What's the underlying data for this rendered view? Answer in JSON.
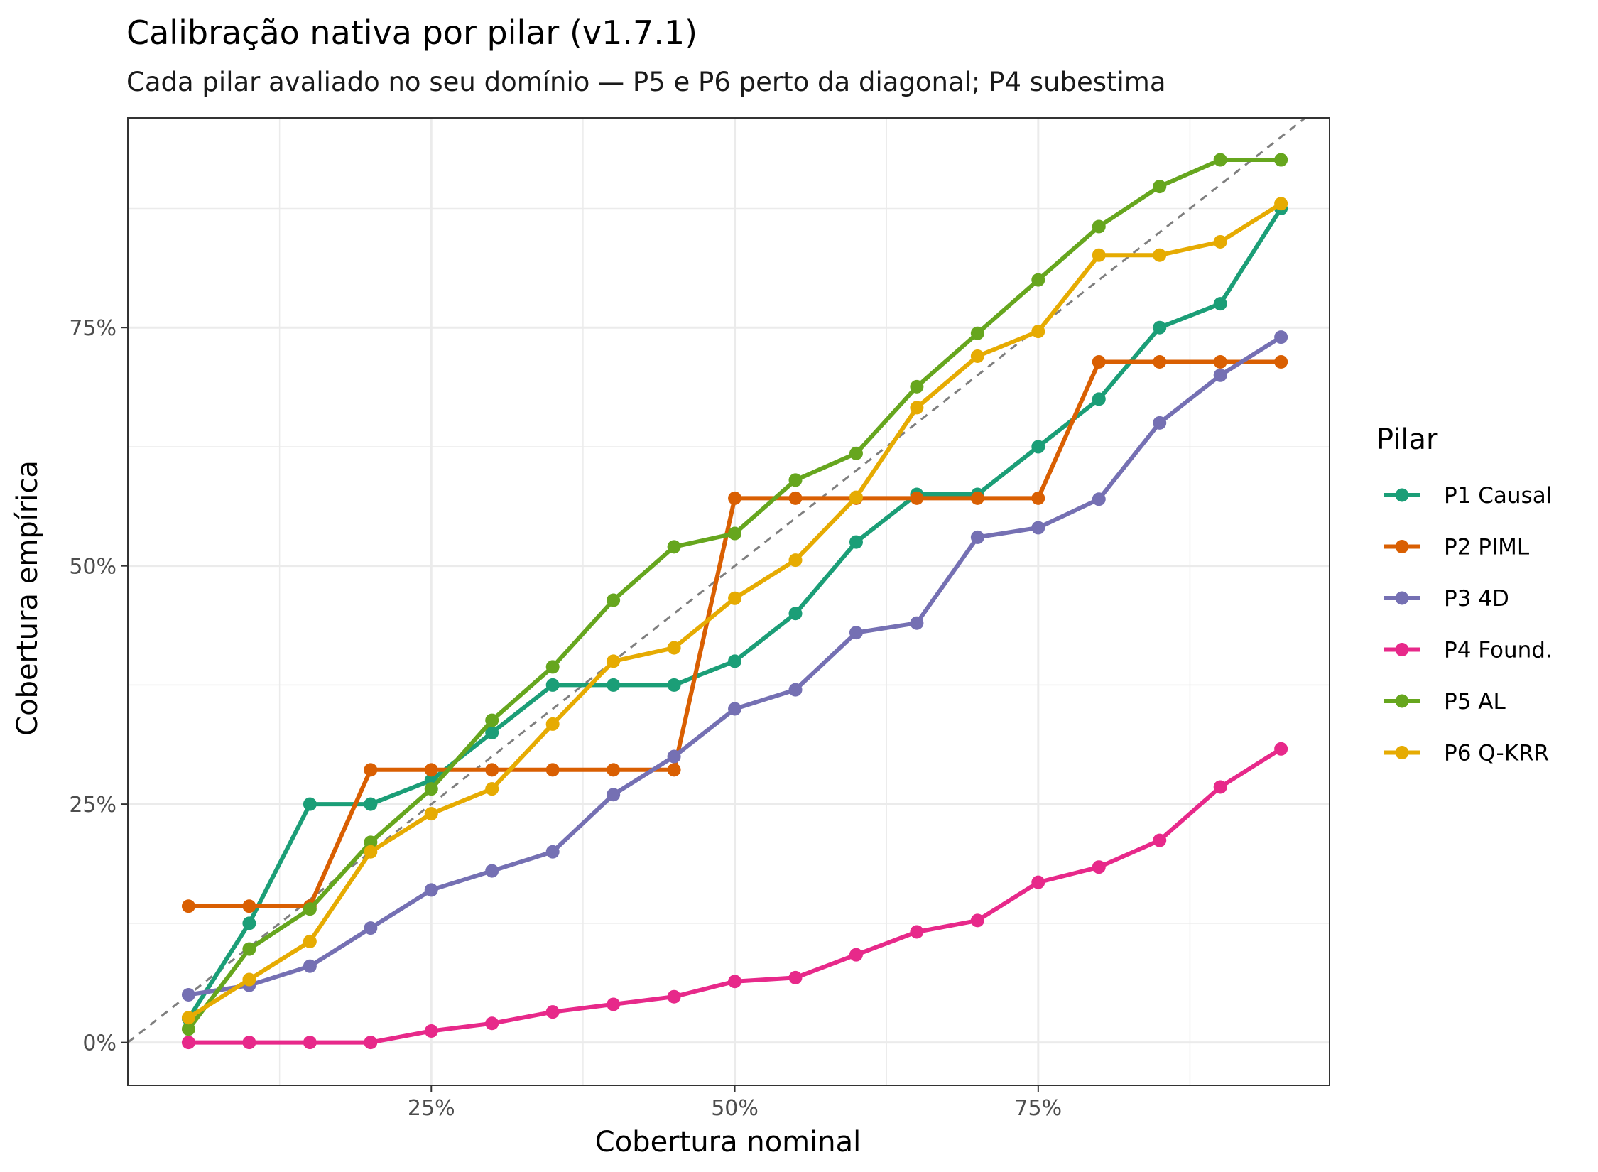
{
  "chart_data": {
    "type": "line",
    "title": "Calibração nativa por pilar (v1.7.1)",
    "subtitle": "Cada pilar avaliado no seu domínio — P5 e P6 perto da diagonal; P4 subestima",
    "xlabel": "Cobertura nominal",
    "ylabel": "Cobertura empírica",
    "xlim": [
      0.0,
      0.99
    ],
    "ylim": [
      -0.045,
      0.97
    ],
    "x_ticks": [
      0.25,
      0.5,
      0.75
    ],
    "x_tick_labels": [
      "25%",
      "50%",
      "75%"
    ],
    "y_ticks": [
      0.0,
      0.25,
      0.5,
      0.75
    ],
    "y_tick_labels": [
      "0%",
      "25%",
      "50%",
      "75%"
    ],
    "grid": true,
    "reference_line": "diagonal y = x (dashed)",
    "legend": {
      "title": "Pilar",
      "position": "right"
    },
    "x": [
      0.05,
      0.1,
      0.15,
      0.2,
      0.25,
      0.3,
      0.35,
      0.4,
      0.45,
      0.5,
      0.55,
      0.6,
      0.65,
      0.7,
      0.75,
      0.8,
      0.85,
      0.9,
      0.95
    ],
    "series": [
      {
        "name": "P1 Causal",
        "color": "#1b9e77",
        "values": [
          0.025,
          0.125,
          0.25,
          0.25,
          0.275,
          0.325,
          0.375,
          0.375,
          0.375,
          0.4,
          0.45,
          0.525,
          0.575,
          0.575,
          0.625,
          0.675,
          0.75,
          0.775,
          0.875
        ]
      },
      {
        "name": "P2 PIML",
        "color": "#d95f02",
        "values": [
          0.143,
          0.143,
          0.143,
          0.286,
          0.286,
          0.286,
          0.286,
          0.286,
          0.286,
          0.571,
          0.571,
          0.571,
          0.571,
          0.571,
          0.571,
          0.714,
          0.714,
          0.714,
          0.714
        ]
      },
      {
        "name": "P3 4D",
        "color": "#7570b3",
        "values": [
          0.05,
          0.06,
          0.08,
          0.12,
          0.16,
          0.18,
          0.2,
          0.26,
          0.3,
          0.35,
          0.37,
          0.43,
          0.44,
          0.53,
          0.54,
          0.57,
          0.65,
          0.7,
          0.74
        ]
      },
      {
        "name": "P4 Found.",
        "color": "#e7298a",
        "values": [
          0.0,
          0.0,
          0.0,
          0.0,
          0.012,
          0.02,
          0.032,
          0.04,
          0.048,
          0.064,
          0.068,
          0.092,
          0.116,
          0.128,
          0.168,
          0.184,
          0.212,
          0.268,
          0.308
        ]
      },
      {
        "name": "P5 AL",
        "color": "#66a61e",
        "values": [
          0.014,
          0.098,
          0.14,
          0.21,
          0.266,
          0.338,
          0.394,
          0.464,
          0.52,
          0.534,
          0.59,
          0.618,
          0.688,
          0.744,
          0.8,
          0.856,
          0.898,
          0.926,
          0.926
        ]
      },
      {
        "name": "P6 Q-KRR",
        "color": "#e6ab02",
        "values": [
          0.026,
          0.066,
          0.106,
          0.2,
          0.24,
          0.266,
          0.334,
          0.4,
          0.414,
          0.466,
          0.506,
          0.572,
          0.666,
          0.72,
          0.746,
          0.826,
          0.826,
          0.84,
          0.88
        ]
      }
    ]
  }
}
